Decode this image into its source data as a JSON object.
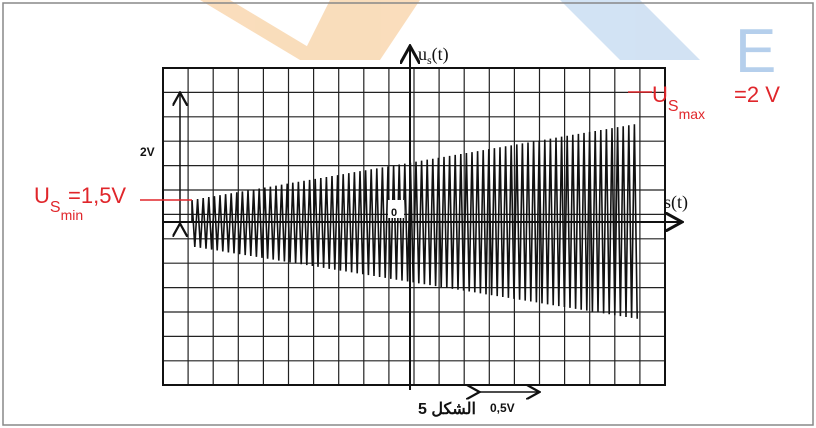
{
  "figure": {
    "vertical_axis": {
      "base": "u",
      "sub": "s",
      "rest": "(t)"
    },
    "horizontal_axis": "s(t)",
    "origin": "0",
    "vertical_scale": "2V",
    "horizontal_scale": "0,5V",
    "caption": "الشكل 5",
    "annotations": [
      {
        "base": "U",
        "sub": "S",
        "subsub": "min",
        "rest": "=1,5V"
      },
      {
        "base": "U",
        "sub": "S",
        "subsub": "max",
        "rest": "=2 V"
      }
    ]
  },
  "watermark": "E"
}
